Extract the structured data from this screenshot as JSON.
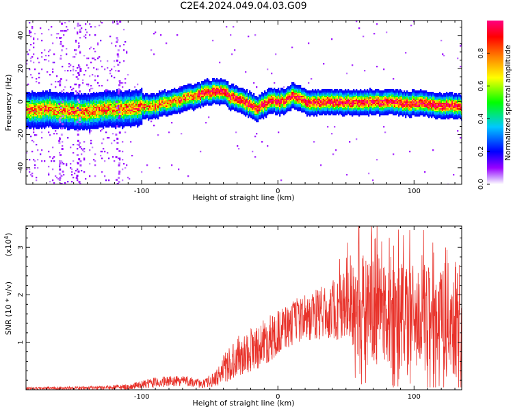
{
  "chart_data": [
    {
      "type": "heatmap",
      "title": "C2E4.2024.049.04.03.G09",
      "xlabel": "Height of straight line (km)",
      "ylabel": "Frequency (Hz)",
      "xlim": [
        -185,
        135
      ],
      "ylim": [
        -50,
        49
      ],
      "xticks": [
        -100,
        0,
        100
      ],
      "yticks": [
        -40,
        -20,
        0,
        20,
        40
      ],
      "xtick_labels": [
        "-100",
        "0",
        "100"
      ],
      "ytick_labels": [
        "-40",
        "-20",
        "0",
        "20",
        "40"
      ],
      "ridge": {
        "x": [
          -185,
          -170,
          -155,
          -140,
          -125,
          -110,
          -100,
          -90,
          -80,
          -70,
          -60,
          -52,
          -45,
          -40,
          -35,
          -30,
          -25,
          -20,
          -16,
          -12,
          -8,
          -5,
          0,
          5,
          8,
          11,
          14,
          18,
          22,
          28,
          35,
          45,
          55,
          65,
          75,
          85,
          95,
          105,
          115,
          125,
          135
        ],
        "y": [
          -5,
          -4,
          -5,
          -6,
          -4,
          -4,
          -3,
          -2,
          0,
          2,
          4,
          6,
          7,
          6,
          3,
          2,
          0,
          -2,
          -4,
          -2,
          0,
          1,
          0,
          1,
          3,
          4,
          3,
          1,
          0,
          0,
          0,
          0,
          0,
          0,
          0,
          0,
          -1,
          0,
          -2,
          -2,
          -3
        ]
      },
      "colorbar": {
        "label": "Normalized spectral amplitude",
        "range": [
          0,
          1
        ],
        "ticks": [
          0.0,
          0.2,
          0.4,
          0.6,
          0.8
        ],
        "tick_labels": [
          "0.0",
          "0.2",
          "0.4",
          "0.6",
          "0.8"
        ],
        "colors": [
          "#ffffff",
          "#9900ff",
          "#0000ff",
          "#00c8ff",
          "#00ff00",
          "#ffff00",
          "#ff8000",
          "#ff0000",
          "#ff0080"
        ]
      }
    },
    {
      "type": "line",
      "xlabel": "Height of straight line (km)",
      "ylabel": "SNR (10 * v/v)",
      "scale_label": "(x10",
      "scale_exp": "4",
      "scale_close": ")",
      "xlim": [
        -185,
        135
      ],
      "ylim": [
        0,
        3.45
      ],
      "xticks": [
        -100,
        0,
        100
      ],
      "yticks": [
        1,
        2,
        3
      ],
      "xtick_labels": [
        "-100",
        "0",
        "100"
      ],
      "ytick_labels": [
        "1",
        "2",
        "3"
      ],
      "color": "#e8322a",
      "envelope": {
        "x": [
          -185,
          -130,
          -110,
          -90,
          -70,
          -55,
          -45,
          -38,
          -30,
          -20,
          -10,
          0,
          10,
          20,
          30,
          40,
          50,
          60,
          70,
          80,
          90,
          100,
          110,
          120,
          135
        ],
        "mean": [
          0.03,
          0.04,
          0.06,
          0.15,
          0.2,
          0.12,
          0.25,
          0.5,
          0.7,
          0.85,
          1.0,
          1.2,
          1.4,
          1.5,
          1.6,
          1.7,
          1.75,
          1.7,
          1.7,
          1.65,
          1.6,
          1.55,
          1.5,
          1.5,
          1.45
        ],
        "spread": [
          0.02,
          0.03,
          0.04,
          0.08,
          0.08,
          0.06,
          0.12,
          0.25,
          0.3,
          0.35,
          0.35,
          0.35,
          0.35,
          0.35,
          0.4,
          0.45,
          0.6,
          0.8,
          0.85,
          0.85,
          0.85,
          0.8,
          0.8,
          0.85,
          0.9
        ]
      }
    }
  ]
}
